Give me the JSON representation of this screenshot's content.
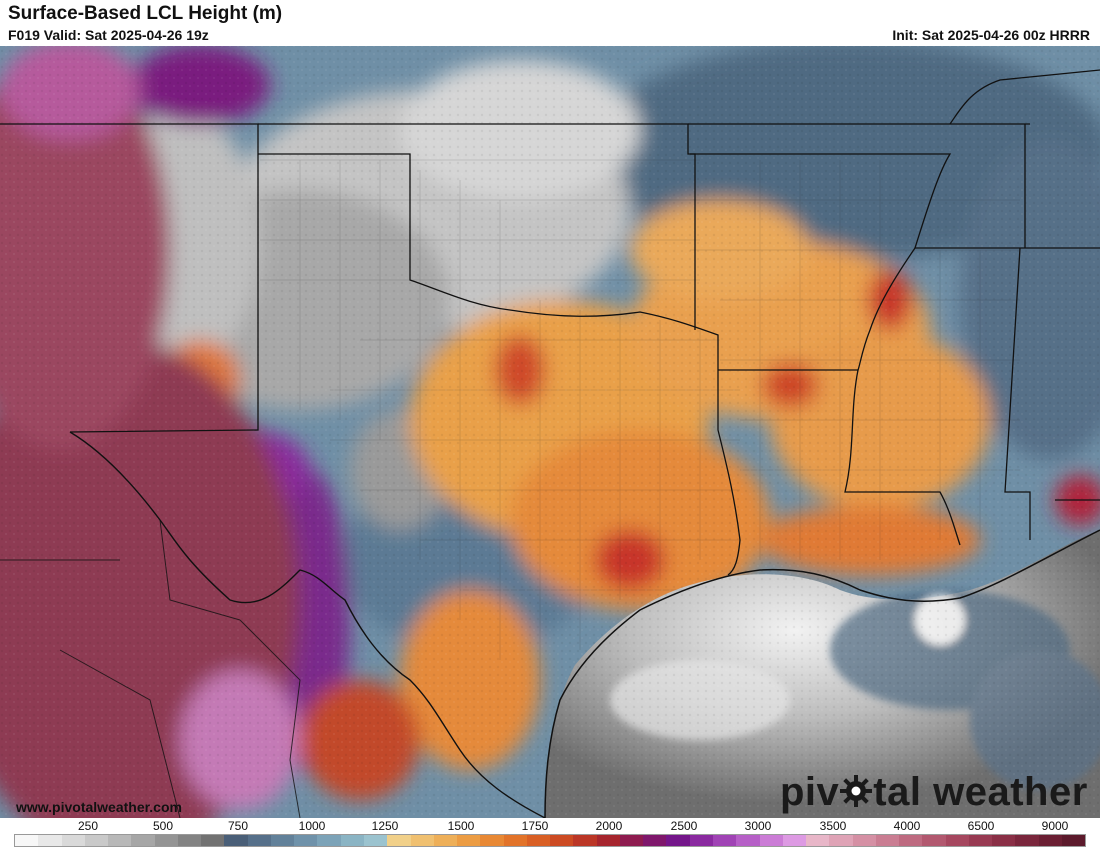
{
  "header": {
    "title": "Surface-Based LCL Height (m)",
    "valid": "F019 Valid: Sat 2025-04-26 19z",
    "init": "Init: Sat 2025-04-26 00z HRRR"
  },
  "footer": {
    "url": "www.pivotalweather.com",
    "brand_left": "piv",
    "brand_right": "tal weather"
  },
  "map": {
    "region": "Southern Plains / Texas",
    "variable": "Surface-Based LCL Height",
    "units": "m"
  },
  "legend": {
    "labels": [
      "250",
      "500",
      "750",
      "1000",
      "1250",
      "1500",
      "1750",
      "2000",
      "2500",
      "3000",
      "3500",
      "4000",
      "6500",
      "9000"
    ],
    "colors": [
      "#f7f7f7",
      "#e8e8e8",
      "#d9d9d9",
      "#c9c9c9",
      "#b8b8b8",
      "#a6a6a6",
      "#949494",
      "#838383",
      "#727272",
      "#4a5f78",
      "#56708a",
      "#62819a",
      "#6f92aa",
      "#7ca3b8",
      "#8ab4c4",
      "#9bc3cf",
      "#f1d089",
      "#f0c070",
      "#eeaf58",
      "#ec9c43",
      "#e88834",
      "#e27329",
      "#d95f24",
      "#cc4a22",
      "#bb3626",
      "#a6252d",
      "#8e1b4f",
      "#7f176c",
      "#74168a",
      "#8a2aa0",
      "#a043b5",
      "#b65fc7",
      "#cb7cd6",
      "#dd9ae3",
      "#e8b6c8",
      "#dfa3b6",
      "#d590a4",
      "#ca7d92",
      "#be6a80",
      "#b2586f",
      "#a6475f",
      "#983a52",
      "#8a2f46",
      "#7a263c",
      "#6b1f33",
      "#5c1a2c"
    ]
  }
}
